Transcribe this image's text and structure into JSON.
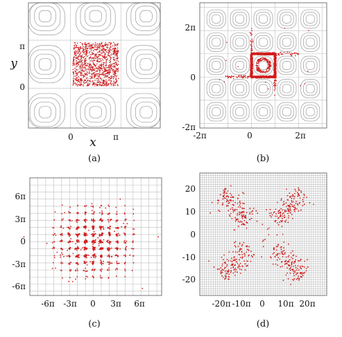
{
  "chart_data": [
    {
      "panel": "(a)",
      "type": "scatter",
      "title": "",
      "xlabel": "x",
      "ylabel": "y",
      "x_ticks": [
        "0",
        "π"
      ],
      "y_ticks": [
        "0",
        "π"
      ],
      "xlim": [
        -2.6,
        5.6
      ],
      "ylim": [
        -2.6,
        5.6
      ],
      "grid": true,
      "background": "cellular flow streamlines (cells of width π)",
      "series": [
        {
          "points": "uniform random initial positions",
          "region_x": [
            0.15,
            3.0
          ],
          "region_y": [
            0.15,
            3.0
          ],
          "count": 950,
          "color": "#d11d1d"
        }
      ]
    },
    {
      "panel": "(b)",
      "type": "scatter",
      "title": "",
      "xlabel": "",
      "ylabel": "",
      "x_ticks": [
        "-2π",
        "0",
        "2π"
      ],
      "y_ticks": [
        "-2π",
        "0",
        "2π"
      ],
      "xlim": [
        -2.2,
        3.2
      ],
      "ylim": [
        -2.2,
        3.2
      ],
      "units": "multiples of π",
      "grid": true,
      "background": "cellular flow streamlines",
      "series": [
        {
          "points": "particles concentrated on boundary of central cell",
          "cell_x": [
            0,
            1
          ],
          "cell_y": [
            0,
            1
          ],
          "color": "#d11d1d"
        }
      ]
    },
    {
      "panel": "(c)",
      "type": "scatter",
      "title": "",
      "xlabel": "",
      "ylabel": "",
      "x_ticks": [
        "-6π",
        "-3π",
        "0",
        "3π",
        "6π"
      ],
      "y_ticks": [
        "6π",
        "3π",
        "0",
        "-3π",
        "-6π"
      ],
      "xlim": [
        -8,
        8.6
      ],
      "ylim": [
        -7.6,
        9.0
      ],
      "units": "multiples of π",
      "grid": true,
      "series": [
        {
          "points": "clusters at lattice nodes spreading diffusively",
          "extent": [
            -5,
            5
          ],
          "color": "#d11d1d"
        }
      ]
    },
    {
      "panel": "(d)",
      "type": "scatter",
      "title": "",
      "xlabel": "",
      "ylabel": "",
      "x_ticks": [
        "-20π",
        "-10π",
        "0",
        "10π",
        "20π"
      ],
      "y_ticks": [
        "20",
        "10",
        "0",
        "-10",
        "-20"
      ],
      "xlim": [
        -28,
        29
      ],
      "ylim": [
        -27,
        27
      ],
      "grid": true,
      "series": [
        {
          "points": "particles spreading along the two diagonals",
          "diagonal_range": [
            7,
            26
          ],
          "color": "#d11d1d"
        }
      ]
    }
  ],
  "captions": [
    "(a)",
    "(b)",
    "(c)",
    "(d)"
  ],
  "tick_text": {
    "a_x": [
      "0",
      "π"
    ],
    "a_y": [
      "π",
      "0"
    ],
    "b_x": [
      "-2π",
      "0",
      "2π"
    ],
    "b_y": [
      "2π",
      "0",
      "-2π"
    ],
    "c_x": [
      "-6π",
      "-3π",
      "0",
      "3π",
      "6π"
    ],
    "c_y": [
      "6π",
      "3π",
      "0",
      "-3π",
      "-6π"
    ],
    "d_x": [
      "-20π",
      "-10π",
      "0",
      "10π",
      "20π"
    ],
    "d_y": [
      "20",
      "10",
      "0",
      "-10",
      "-20"
    ]
  },
  "axis_labels": {
    "a_x": "x",
    "a_y": "y"
  },
  "colors": {
    "points": "#d11d1d",
    "streamlines": "#9a9a9a",
    "grid": "#bdbdbd"
  }
}
